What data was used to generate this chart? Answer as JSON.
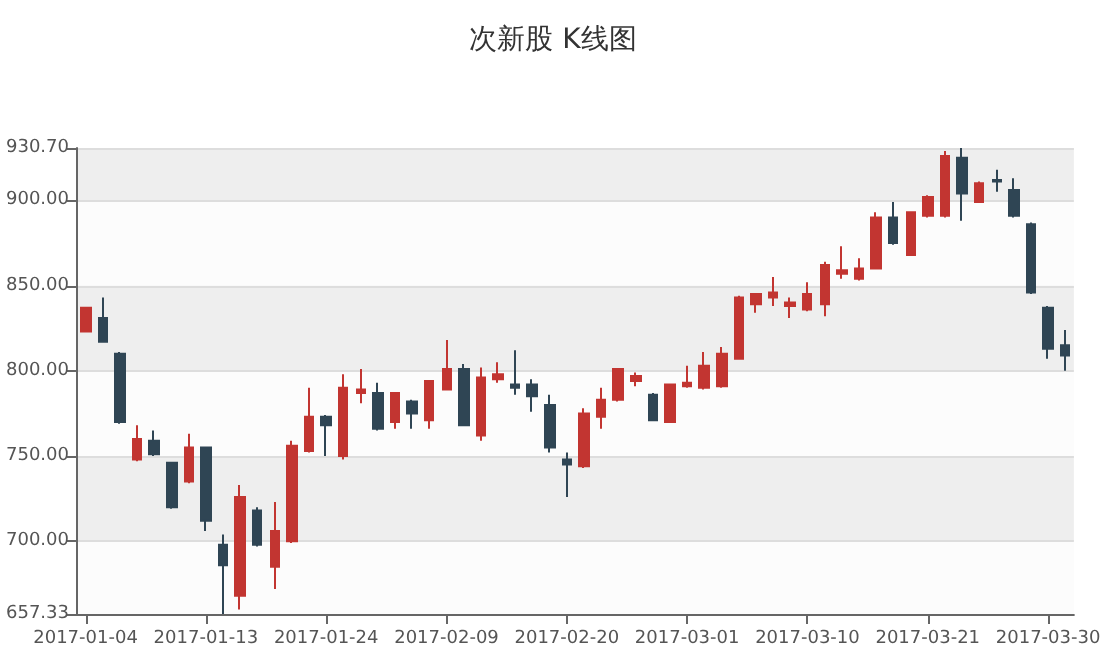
{
  "chart_data": {
    "type": "candlestick",
    "title": "次新股 K线图",
    "categories": [
      "2017-01-04",
      null,
      null,
      null,
      null,
      null,
      null,
      "2017-01-13",
      null,
      null,
      null,
      null,
      null,
      null,
      "2017-01-24",
      null,
      null,
      null,
      null,
      null,
      null,
      "2017-02-09",
      null,
      null,
      null,
      null,
      null,
      null,
      "2017-02-20",
      null,
      null,
      null,
      null,
      null,
      null,
      "2017-03-01",
      null,
      null,
      null,
      null,
      null,
      null,
      "2017-03-10",
      null,
      null,
      null,
      null,
      null,
      null,
      "2017-03-21",
      null,
      null,
      null,
      null,
      null,
      null,
      "2017-03-30",
      null
    ],
    "ohlc": [
      [
        823,
        837,
        823,
        837
      ],
      [
        831,
        843,
        817,
        817
      ],
      [
        810,
        811,
        769,
        770
      ],
      [
        748,
        768,
        747,
        760
      ],
      [
        759,
        765,
        750,
        751
      ],
      [
        746,
        746,
        719,
        720
      ],
      [
        735,
        763,
        734,
        755
      ],
      [
        755,
        755,
        706,
        712
      ],
      [
        698,
        704,
        657.33,
        686
      ],
      [
        668,
        733,
        660,
        726
      ],
      [
        718,
        720,
        697,
        698
      ],
      [
        685,
        723,
        672,
        706
      ],
      [
        700,
        759,
        699,
        756
      ],
      [
        753,
        790,
        752,
        773
      ],
      [
        773,
        774,
        750,
        768
      ],
      [
        750,
        798,
        748,
        790
      ],
      [
        787,
        801,
        781,
        789
      ],
      [
        787,
        793,
        765,
        766
      ],
      [
        770,
        787,
        766,
        787
      ],
      [
        782,
        783,
        766,
        775
      ],
      [
        771,
        794,
        766,
        794
      ],
      [
        789,
        818,
        789,
        801
      ],
      [
        801,
        804,
        768,
        768
      ],
      [
        762,
        802,
        759,
        796
      ],
      [
        795,
        805,
        793,
        798
      ],
      [
        792,
        812,
        786,
        790
      ],
      [
        792,
        795,
        776,
        785
      ],
      [
        780,
        786,
        752,
        755
      ],
      [
        748,
        752,
        726,
        745
      ],
      [
        744,
        778,
        743,
        775
      ],
      [
        773,
        790,
        766,
        783
      ],
      [
        783,
        801,
        782,
        801
      ],
      [
        794,
        799,
        791,
        797
      ],
      [
        786,
        787,
        771,
        771
      ],
      [
        770,
        792,
        770,
        792
      ],
      [
        791,
        803,
        790,
        793
      ],
      [
        790,
        811,
        789,
        803
      ],
      [
        791,
        814,
        790,
        810
      ],
      [
        807,
        844,
        807,
        843
      ],
      [
        839,
        845,
        834,
        845
      ],
      [
        843,
        855,
        838,
        846
      ],
      [
        838,
        843,
        831,
        840
      ],
      [
        836,
        852,
        835,
        845
      ],
      [
        839,
        864,
        832,
        862
      ],
      [
        857,
        873,
        854,
        859
      ],
      [
        854,
        866,
        853,
        860
      ],
      [
        860,
        893,
        860,
        890
      ],
      [
        890,
        899,
        874,
        875
      ],
      [
        868,
        893,
        868,
        893
      ],
      [
        891,
        903,
        890,
        902
      ],
      [
        891,
        929,
        890,
        926
      ],
      [
        925,
        930.7,
        888,
        904
      ],
      [
        899,
        911,
        899,
        910
      ],
      [
        912,
        918,
        905,
        911
      ],
      [
        906,
        913,
        890,
        891
      ],
      [
        886,
        887,
        845,
        846
      ],
      [
        837,
        838,
        807,
        813
      ],
      [
        815,
        824,
        800,
        809
      ]
    ],
    "colors": [
      "#c23531",
      "#2f4554",
      "#2f4554",
      "#c23531",
      "#2f4554",
      "#2f4554",
      "#c23531",
      "#2f4554",
      "#2f4554",
      "#c23531",
      "#2f4554",
      "#c23531",
      "#c23531",
      "#c23531",
      "#2f4554",
      "#c23531",
      "#c23531",
      "#2f4554",
      "#c23531",
      "#2f4554",
      "#c23531",
      "#c23531",
      "#2f4554",
      "#c23531",
      "#c23531",
      "#2f4554",
      "#2f4554",
      "#2f4554",
      "#2f4554",
      "#c23531",
      "#c23531",
      "#c23531",
      "#c23531",
      "#2f4554",
      "#c23531",
      "#c23531",
      "#c23531",
      "#c23531",
      "#c23531",
      "#c23531",
      "#c23531",
      "#c23531",
      "#c23531",
      "#c23531",
      "#c23531",
      "#c23531",
      "#c23531",
      "#2f4554",
      "#c23531",
      "#c23531",
      "#c23531",
      "#2f4554",
      "#c23531",
      "#2f4554",
      "#2f4554",
      "#2f4554",
      "#2f4554",
      "#2f4554"
    ],
    "ylim": [
      657.33,
      930.7
    ],
    "yticks": [
      {
        "value": 657.33,
        "label": "657.33"
      },
      {
        "value": 700,
        "label": "700.00"
      },
      {
        "value": 750,
        "label": "750.00"
      },
      {
        "value": 800,
        "label": "800.00"
      },
      {
        "value": 850,
        "label": "850.00"
      },
      {
        "value": 900,
        "label": "900.00"
      },
      {
        "value": 930.7,
        "label": "930.70"
      }
    ],
    "grid": "y"
  }
}
